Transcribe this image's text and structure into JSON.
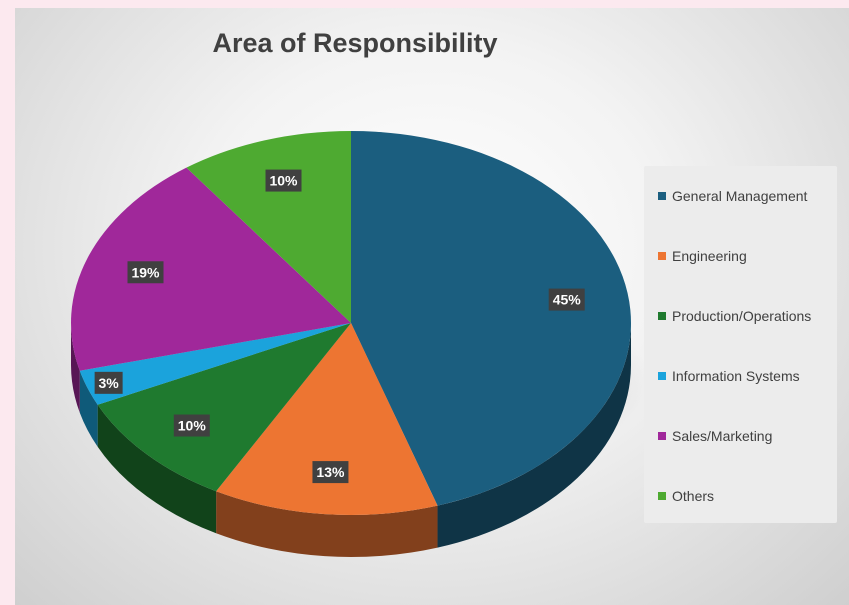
{
  "chart_data": {
    "type": "pie",
    "title": "Area of Responsibility",
    "categories": [
      "General Management",
      "Engineering",
      "Production/Operations",
      "Information Systems",
      "Sales/Marketing",
      "Others"
    ],
    "values": [
      45,
      13,
      10,
      3,
      19,
      10
    ],
    "labels": [
      "45%",
      "13%",
      "10%",
      "3%",
      "19%",
      "10%"
    ],
    "colors": [
      "#1b5e7f",
      "#ed7532",
      "#1f7a2f",
      "#1ba3dc",
      "#a0289a",
      "#4eaa31"
    ],
    "legend_position": "right",
    "style": "3d"
  }
}
